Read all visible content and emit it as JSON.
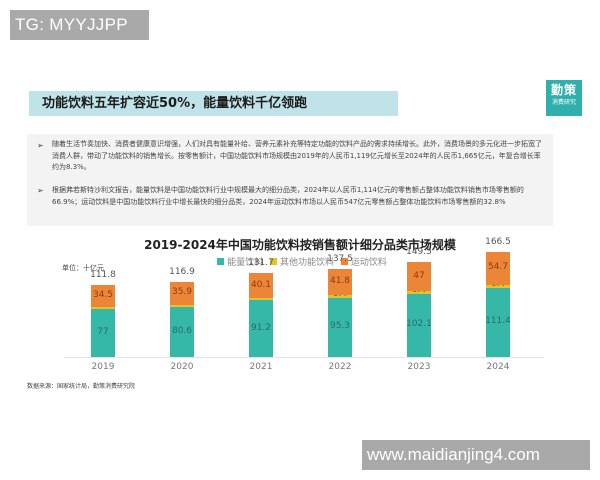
{
  "watermarks": {
    "top_left": "TG: MYYJJPP",
    "bottom_right": "www.maidianjing4.com"
  },
  "header": {
    "title": "功能饮料五年扩容近50%，能量饮料千亿领跑"
  },
  "logo": {
    "line1": "勤策",
    "line2": "消费研究",
    "color": "#2fb0ad"
  },
  "bullets": [
    {
      "icon": "arrow-bullet",
      "text": "随着生活节奏加快、消费者健康意识增强，人们对具有能量补给、营养元素补充等特定功能的饮料产品的需求持续增长。此外，消费场景的多元化进一步拓宽了消费人群，带动了功能饮料的销售增长。按零售额计，中国功能饮料市场规模由2019年的人民币1,119亿元增长至2024年的人民币1,665亿元，年复合增长率约为8.3%。"
    },
    {
      "icon": "arrow-bullet",
      "text": "根据弗若斯特沙利文报告，能量饮料是中国功能饮料行业中规模最大的细分品类，2024年以人民币1,114亿元的零售额占整体功能饮料销售市场零售额的66.9%；运动饮料是中国功能饮料行业中增长最快的细分品类，2024年运动饮料市场以人民币547亿元零售额占整体功能饮料市场零售额的32.8%"
    }
  ],
  "source": "数据来源：国家统计局，勤策消费研究院",
  "colors": {
    "energy": "#35b8a8",
    "other": "#e6c229",
    "sports": "#ec8537",
    "title_band": "#bfe3e8"
  },
  "chart_data": {
    "type": "bar",
    "stacked": true,
    "title": "2019-2024年中国功能饮料按销售额计细分品类市场规模",
    "unit_label": "单位：十亿元",
    "xlabel": "",
    "ylabel": "十亿元",
    "categories": [
      "2019",
      "2020",
      "2021",
      "2022",
      "2023",
      "2024"
    ],
    "series": [
      {
        "name": "能量饮料",
        "color": "#35b8a8",
        "values": [
          77,
          80.6,
          91.2,
          95.3,
          102.1,
          111.4
        ]
      },
      {
        "name": "其他功能饮料",
        "color": "#e6c229",
        "values": [
          0.3,
          0.4,
          0.4,
          0.4,
          0.4,
          0.4
        ]
      },
      {
        "name": "运动饮料",
        "color": "#ec8537",
        "values": [
          34.5,
          35.9,
          40.1,
          41.8,
          47,
          54.7
        ]
      }
    ],
    "totals": [
      111.8,
      116.9,
      131.7,
      137.5,
      149.5,
      166.5
    ],
    "legend": [
      "能量饮料",
      "其他功能饮料",
      "运动饮料"
    ],
    "legend_position": "top",
    "grid": false
  }
}
